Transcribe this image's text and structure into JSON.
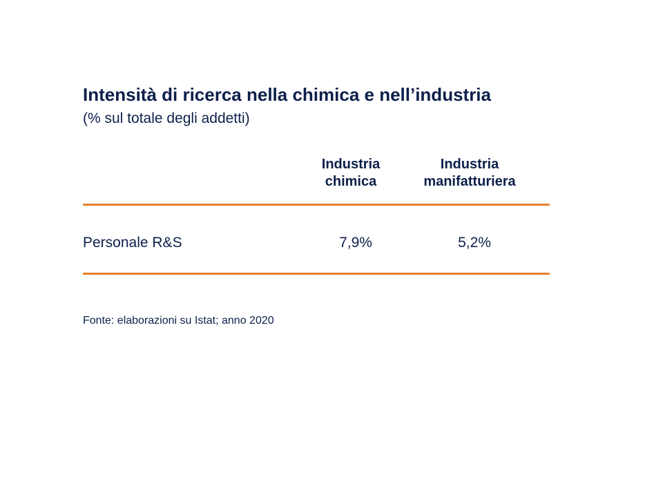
{
  "chart_data": {
    "type": "table",
    "title": "Intensità di ricerca nella chimica e nell’industria",
    "subtitle": "(% sul totale degli addetti)",
    "columns": [
      "Industria\nchimica",
      "Industria\nmanifatturiera"
    ],
    "rows": [
      {
        "label": "Personale R&S",
        "values": [
          "7,9%",
          "5,2%"
        ]
      }
    ],
    "source": "Fonte: elaborazioni su Istat; anno 2020"
  },
  "colors": {
    "text": "#0d1f4a",
    "rule": "#e8802a"
  }
}
